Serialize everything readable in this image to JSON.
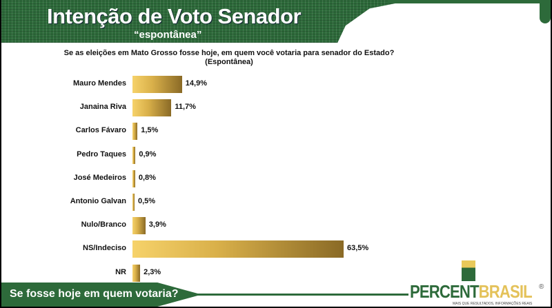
{
  "header": {
    "title": "Intenção de Voto Senador",
    "subtitle": "“espontânea”"
  },
  "footer": {
    "question": "Se fosse hoje em quem votaria?"
  },
  "logo": {
    "part1": "PERCENT",
    "part2": "BRASIL",
    "registered": "®",
    "tagline": "MAIS QUE RESULTADOS, INFORMAÇÕES REAIS"
  },
  "colors": {
    "green": "#2d6a3a",
    "gold": "#d9b04a"
  },
  "chart_data": {
    "type": "bar",
    "orientation": "horizontal",
    "title": "Se as eleições em Mato Grosso fosse hoje, em quem você votaria para senador do Estado?",
    "subtitle": "(Espontânea)",
    "categories": [
      "Mauro Mendes",
      "Janaina Riva",
      "Carlos Fávaro",
      "Pedro Taques",
      "José Medeiros",
      "Antonio Galvan",
      "Nulo/Branco",
      "NS/Indeciso",
      "NR"
    ],
    "values": [
      14.9,
      11.7,
      1.5,
      0.9,
      0.8,
      0.5,
      3.9,
      63.5,
      2.3
    ],
    "labels": [
      "14,9%",
      "11,7%",
      "1,5%",
      "0,9%",
      "0,8%",
      "0,5%",
      "3,9%",
      "63,5%",
      "2,3%"
    ],
    "unit": "%",
    "xlim": [
      0,
      65
    ]
  }
}
